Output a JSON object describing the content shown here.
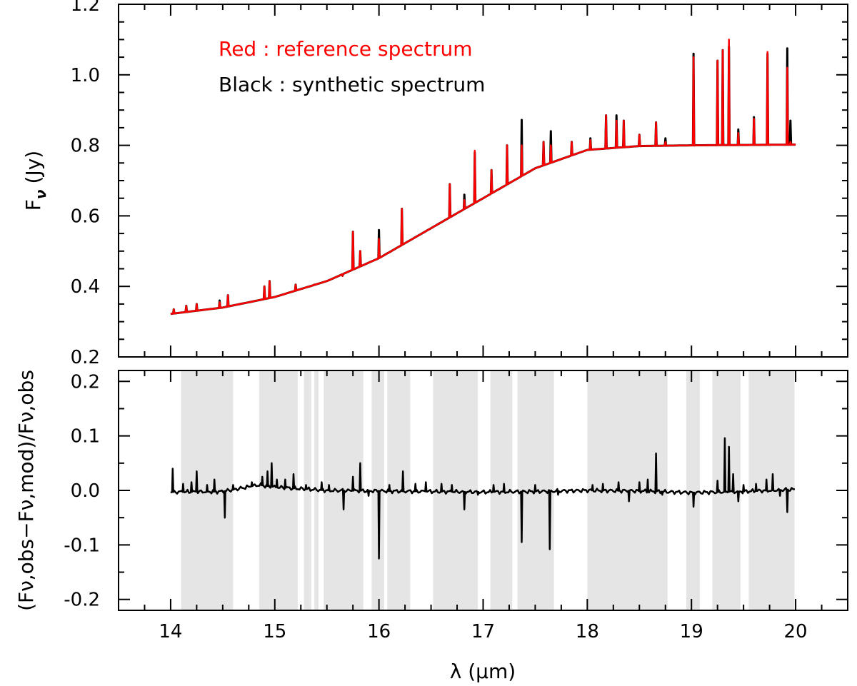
{
  "chart_data": [
    {
      "panel": "top",
      "type": "line",
      "xlim": [
        13.5,
        20.5
      ],
      "ylim": [
        0.2,
        1.2
      ],
      "yticks": [
        "0.2",
        "0.4",
        "0.6",
        "0.8",
        "1.0",
        "1.2"
      ],
      "ylabel_main": "F",
      "ylabel_sub": "ν",
      "ylabel_unit": "(Jy)",
      "legend": [
        {
          "text": "Red : reference spectrum",
          "color": "#ff0000"
        },
        {
          "text": "Black : synthetic spectrum",
          "color": "#000000"
        }
      ],
      "continuum": {
        "x": [
          14.0,
          14.5,
          15.0,
          15.5,
          16.0,
          16.5,
          17.0,
          17.5,
          18.0,
          18.5,
          19.0,
          19.5,
          20.0
        ],
        "y": [
          0.322,
          0.34,
          0.37,
          0.415,
          0.48,
          0.565,
          0.65,
          0.735,
          0.787,
          0.798,
          0.8,
          0.801,
          0.802
        ]
      },
      "series": [
        {
          "name": "synthetic spectrum",
          "color": "#000000",
          "peaks": [
            [
              14.03,
              0.335
            ],
            [
              14.15,
              0.345
            ],
            [
              14.25,
              0.35
            ],
            [
              14.47,
              0.36
            ],
            [
              14.55,
              0.375
            ],
            [
              14.9,
              0.4
            ],
            [
              14.95,
              0.415
            ],
            [
              15.2,
              0.405
            ],
            [
              15.38,
              0.405
            ],
            [
              15.65,
              0.43
            ],
            [
              15.75,
              0.555
            ],
            [
              15.82,
              0.5
            ],
            [
              16.0,
              0.56
            ],
            [
              16.12,
              0.5
            ],
            [
              16.22,
              0.62
            ],
            [
              16.68,
              0.69
            ],
            [
              16.82,
              0.66
            ],
            [
              16.92,
              0.78
            ],
            [
              17.08,
              0.73
            ],
            [
              17.23,
              0.8
            ],
            [
              17.37,
              0.872
            ],
            [
              17.58,
              0.81
            ],
            [
              17.65,
              0.84
            ],
            [
              17.85,
              0.81
            ],
            [
              18.03,
              0.82
            ],
            [
              18.18,
              0.885
            ],
            [
              18.28,
              0.885
            ],
            [
              18.35,
              0.87
            ],
            [
              18.5,
              0.83
            ],
            [
              18.66,
              0.865
            ],
            [
              18.75,
              0.82
            ],
            [
              19.02,
              1.06
            ],
            [
              19.25,
              1.04
            ],
            [
              19.3,
              1.07
            ],
            [
              19.36,
              1.08
            ],
            [
              19.45,
              0.845
            ],
            [
              19.6,
              0.88
            ],
            [
              19.73,
              1.06
            ],
            [
              19.92,
              1.075
            ],
            [
              19.95,
              0.87
            ]
          ]
        },
        {
          "name": "reference spectrum",
          "color": "#ff0000",
          "peaks": [
            [
              14.03,
              0.335
            ],
            [
              14.15,
              0.345
            ],
            [
              14.25,
              0.35
            ],
            [
              14.47,
              0.355
            ],
            [
              14.55,
              0.375
            ],
            [
              14.9,
              0.4
            ],
            [
              14.95,
              0.415
            ],
            [
              15.2,
              0.405
            ],
            [
              15.38,
              0.405
            ],
            [
              15.65,
              0.43
            ],
            [
              15.75,
              0.555
            ],
            [
              15.82,
              0.5
            ],
            [
              16.0,
              0.535
            ],
            [
              16.12,
              0.5
            ],
            [
              16.22,
              0.62
            ],
            [
              16.68,
              0.69
            ],
            [
              16.82,
              0.645
            ],
            [
              16.92,
              0.785
            ],
            [
              17.08,
              0.73
            ],
            [
              17.23,
              0.8
            ],
            [
              17.37,
              0.8
            ],
            [
              17.58,
              0.81
            ],
            [
              17.65,
              0.8
            ],
            [
              17.85,
              0.81
            ],
            [
              18.03,
              0.815
            ],
            [
              18.18,
              0.885
            ],
            [
              18.28,
              0.87
            ],
            [
              18.35,
              0.87
            ],
            [
              18.5,
              0.83
            ],
            [
              18.66,
              0.865
            ],
            [
              18.75,
              0.81
            ],
            [
              19.02,
              1.05
            ],
            [
              19.25,
              1.04
            ],
            [
              19.3,
              1.07
            ],
            [
              19.36,
              1.1
            ],
            [
              19.45,
              0.835
            ],
            [
              19.6,
              0.875
            ],
            [
              19.73,
              1.065
            ],
            [
              19.92,
              1.02
            ],
            [
              19.95,
              0.81
            ]
          ]
        }
      ]
    },
    {
      "panel": "bottom",
      "type": "line",
      "xlim": [
        13.5,
        20.5
      ],
      "ylim": [
        -0.22,
        0.22
      ],
      "xticks": [
        "14",
        "15",
        "16",
        "17",
        "18",
        "19",
        "20"
      ],
      "yticks": [
        "-0.2",
        "-0.1",
        "0.0",
        "0.1",
        "0.2"
      ],
      "xlabel": "λ (μm)",
      "ylabel_text": "(Fν,obs−Fν,mod)/Fν,obs",
      "shaded_ranges": [
        [
          14.1,
          14.6
        ],
        [
          14.85,
          15.22
        ],
        [
          15.28,
          15.35
        ],
        [
          15.38,
          15.42
        ],
        [
          15.47,
          15.85
        ],
        [
          15.93,
          16.05
        ],
        [
          16.08,
          16.3
        ],
        [
          16.52,
          16.95
        ],
        [
          17.07,
          17.28
        ],
        [
          17.33,
          17.68
        ],
        [
          18.0,
          18.77
        ],
        [
          18.95,
          19.08
        ],
        [
          19.2,
          19.47
        ],
        [
          19.55,
          19.99
        ]
      ],
      "series": [
        {
          "name": "residual",
          "color": "#000000",
          "baseline": {
            "x": [
              14.0,
              14.5,
              14.85,
              15.0,
              15.5,
              16.0,
              16.5,
              17.0,
              17.5,
              18.0,
              18.5,
              19.0,
              19.5,
              20.0
            ],
            "y": [
              -0.003,
              -0.002,
              0.01,
              0.006,
              0.0,
              -0.001,
              -0.002,
              -0.003,
              -0.002,
              0.0,
              -0.001,
              -0.004,
              -0.002,
              0.002
            ]
          },
          "spikes": [
            [
              14.02,
              0.04
            ],
            [
              14.12,
              0.012
            ],
            [
              14.2,
              0.015
            ],
            [
              14.25,
              0.035
            ],
            [
              14.35,
              0.01
            ],
            [
              14.42,
              0.02
            ],
            [
              14.52,
              -0.05
            ],
            [
              14.6,
              0.01
            ],
            [
              14.78,
              0.015
            ],
            [
              14.88,
              0.025
            ],
            [
              14.93,
              0.035
            ],
            [
              14.97,
              0.05
            ],
            [
              15.02,
              0.02
            ],
            [
              15.1,
              0.02
            ],
            [
              15.18,
              0.03
            ],
            [
              15.3,
              0.01
            ],
            [
              15.45,
              0.015
            ],
            [
              15.52,
              0.01
            ],
            [
              15.66,
              -0.035
            ],
            [
              15.75,
              0.025
            ],
            [
              15.82,
              0.05
            ],
            [
              15.9,
              -0.01
            ],
            [
              16.0,
              -0.125
            ],
            [
              16.1,
              0.01
            ],
            [
              16.23,
              0.035
            ],
            [
              16.35,
              0.012
            ],
            [
              16.45,
              0.015
            ],
            [
              16.6,
              0.012
            ],
            [
              16.7,
              0.01
            ],
            [
              16.82,
              -0.035
            ],
            [
              16.95,
              -0.008
            ],
            [
              17.1,
              0.01
            ],
            [
              17.2,
              0.012
            ],
            [
              17.37,
              -0.095
            ],
            [
              17.5,
              0.01
            ],
            [
              17.64,
              -0.108
            ],
            [
              17.72,
              -0.008
            ],
            [
              18.05,
              0.01
            ],
            [
              18.15,
              0.012
            ],
            [
              18.3,
              0.015
            ],
            [
              18.4,
              -0.02
            ],
            [
              18.5,
              0.015
            ],
            [
              18.58,
              0.02
            ],
            [
              18.66,
              0.068
            ],
            [
              18.72,
              -0.008
            ],
            [
              19.02,
              -0.03
            ],
            [
              19.25,
              0.018
            ],
            [
              19.32,
              0.096
            ],
            [
              19.36,
              0.08
            ],
            [
              19.4,
              0.03
            ],
            [
              19.45,
              -0.02
            ],
            [
              19.5,
              0.01
            ],
            [
              19.62,
              0.012
            ],
            [
              19.72,
              0.02
            ],
            [
              19.78,
              0.03
            ],
            [
              19.85,
              -0.01
            ],
            [
              19.92,
              -0.04
            ]
          ]
        }
      ]
    }
  ]
}
